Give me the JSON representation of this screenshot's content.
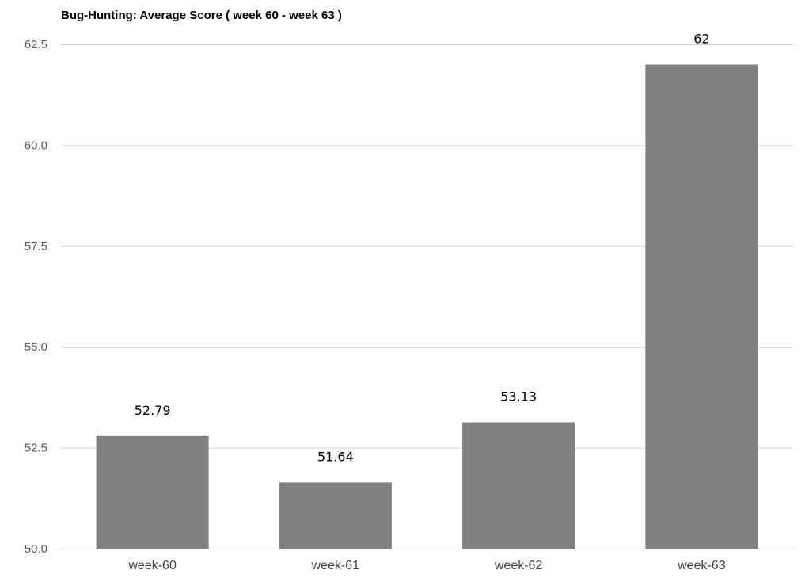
{
  "chart_data": {
    "type": "bar",
    "title": "Bug-Hunting: Average Score ( week 60 - week 63 )",
    "xlabel": "",
    "ylabel": "",
    "categories": [
      "week-60",
      "week-61",
      "week-62",
      "week-63"
    ],
    "values": [
      52.79,
      51.64,
      53.13,
      62
    ],
    "data_labels": [
      "52.79",
      "51.64",
      "53.13",
      "62"
    ],
    "ylim": [
      50.0,
      62.5
    ],
    "yticks": [
      "50.0",
      "52.5",
      "55.0",
      "57.5",
      "60.0",
      "62.5"
    ],
    "grid": true,
    "legend": "none",
    "colors": {
      "bar": "#808080",
      "grid": "#d0d0d0"
    }
  }
}
